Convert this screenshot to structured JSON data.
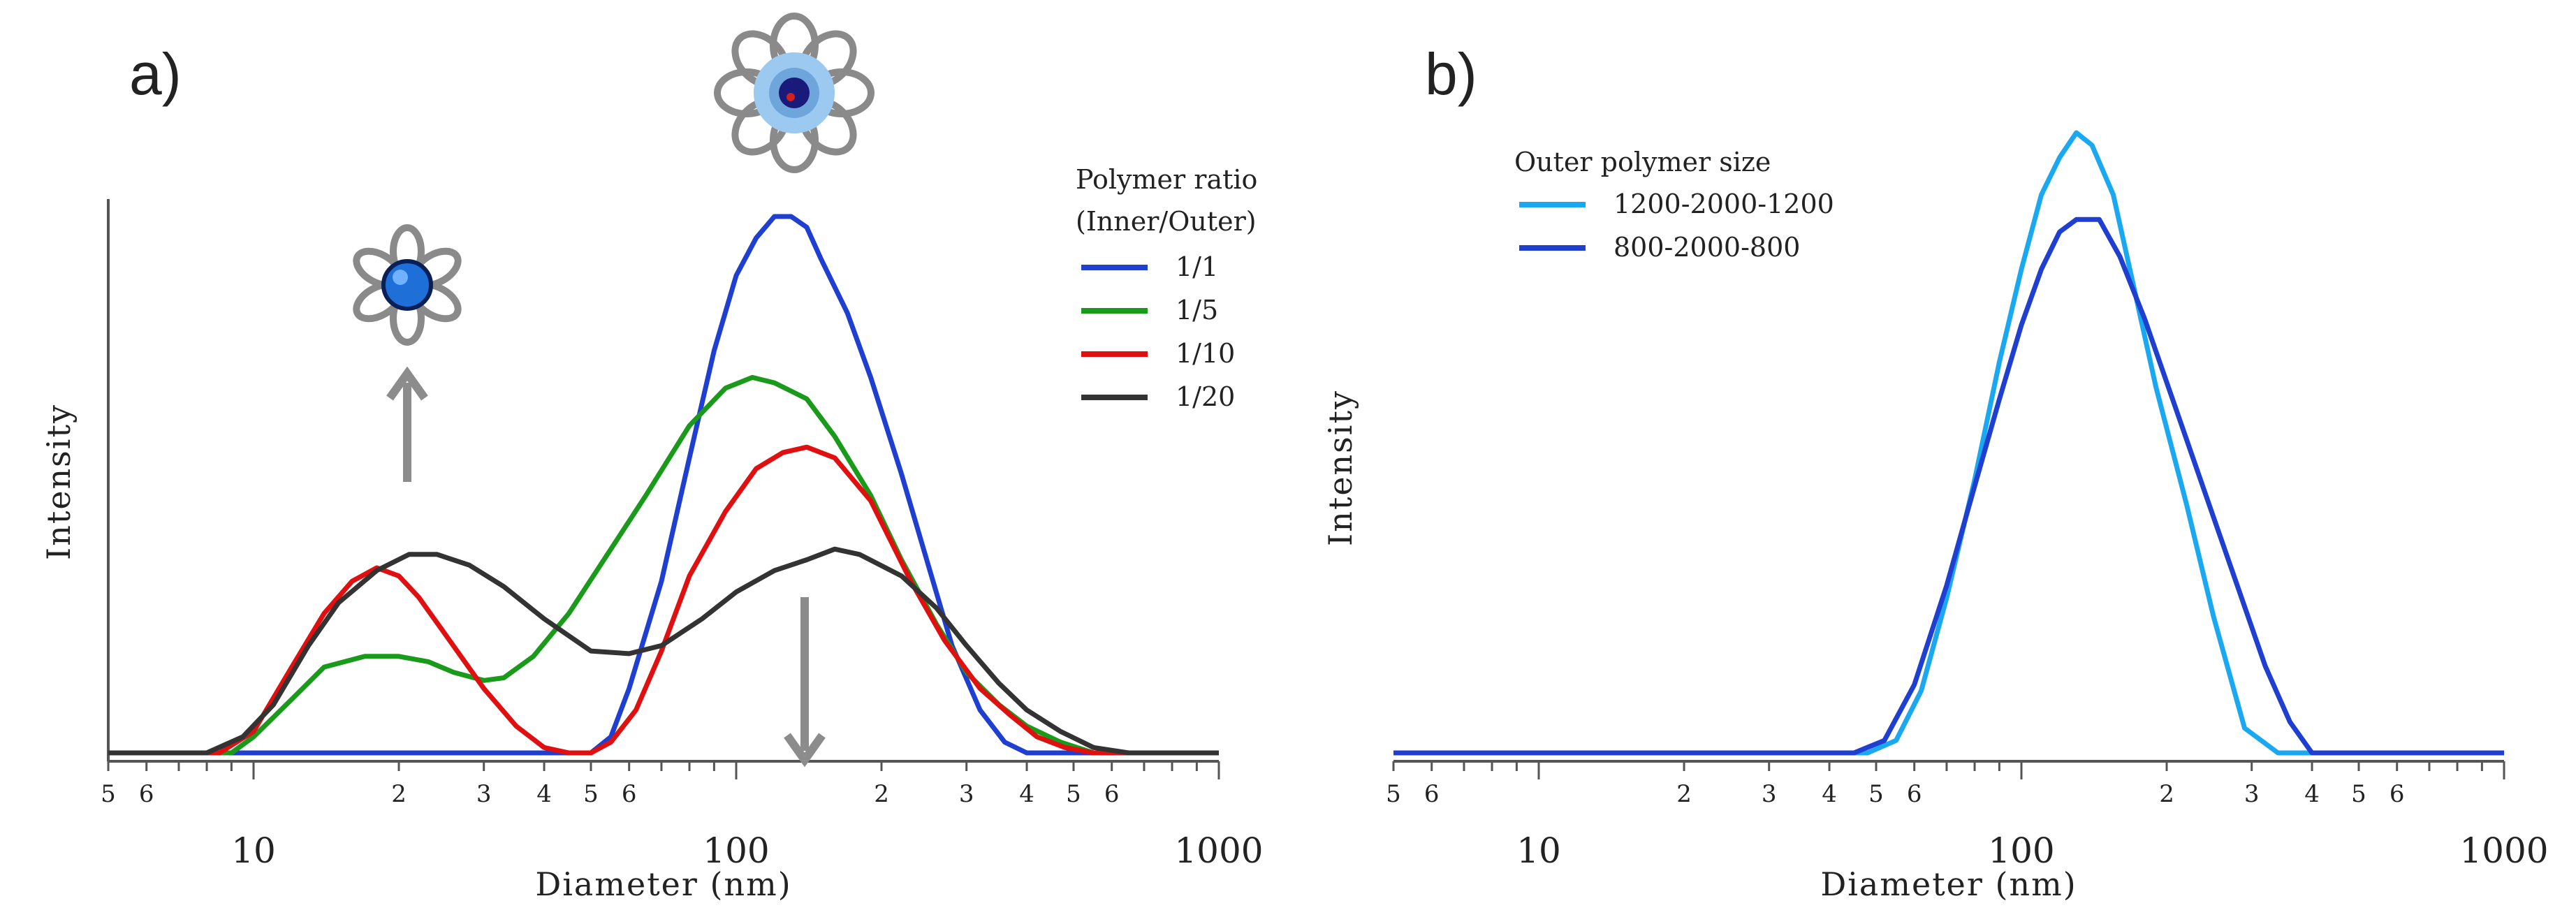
{
  "chart_data": [
    {
      "panel_label": "a)",
      "type": "line",
      "xscale": "log",
      "xlim": [
        5,
        1000
      ],
      "xlabel": "Diameter (nm)",
      "ylabel": "Intensity",
      "x_major_ticks": [
        "10",
        "100",
        "1000"
      ],
      "x_minor_ticks": [
        "5",
        "6",
        "2",
        "3",
        "4",
        "5",
        "6",
        "2",
        "3",
        "4",
        "5",
        "6"
      ],
      "legend": {
        "title_line1": "Polymer ratio",
        "title_line2": "(Inner/Outer)",
        "position": "top-right"
      },
      "ylim": [
        0,
        100
      ],
      "series": [
        {
          "name": "1/1",
          "color": "#1f3fd0",
          "points": [
            [
              5,
              0
            ],
            [
              50,
              0
            ],
            [
              55,
              3
            ],
            [
              60,
              12
            ],
            [
              70,
              32
            ],
            [
              80,
              55
            ],
            [
              90,
              75
            ],
            [
              100,
              89
            ],
            [
              110,
              96
            ],
            [
              120,
              100
            ],
            [
              130,
              100
            ],
            [
              140,
              98
            ],
            [
              150,
              92
            ],
            [
              170,
              82
            ],
            [
              190,
              70
            ],
            [
              220,
              52
            ],
            [
              250,
              35
            ],
            [
              280,
              20
            ],
            [
              320,
              8
            ],
            [
              360,
              2
            ],
            [
              400,
              0
            ],
            [
              1000,
              0
            ]
          ]
        },
        {
          "name": "1/5",
          "color": "#1a9a1a",
          "points": [
            [
              5,
              0
            ],
            [
              9,
              0
            ],
            [
              10,
              3
            ],
            [
              12,
              10
            ],
            [
              14,
              16
            ],
            [
              17,
              18
            ],
            [
              20,
              18
            ],
            [
              23,
              17
            ],
            [
              26,
              15
            ],
            [
              30,
              13.5
            ],
            [
              33,
              14
            ],
            [
              38,
              18
            ],
            [
              45,
              26
            ],
            [
              55,
              38
            ],
            [
              65,
              48
            ],
            [
              80,
              61
            ],
            [
              95,
              68
            ],
            [
              108,
              70
            ],
            [
              120,
              69
            ],
            [
              140,
              66
            ],
            [
              160,
              59
            ],
            [
              190,
              48
            ],
            [
              220,
              36
            ],
            [
              260,
              24
            ],
            [
              300,
              15
            ],
            [
              350,
              9
            ],
            [
              400,
              5
            ],
            [
              470,
              2
            ],
            [
              550,
              0
            ],
            [
              1000,
              0
            ]
          ]
        },
        {
          "name": "1/10",
          "color": "#e01010",
          "points": [
            [
              5,
              0
            ],
            [
              8.5,
              0
            ],
            [
              10,
              4
            ],
            [
              12,
              16
            ],
            [
              14,
              26
            ],
            [
              16,
              32
            ],
            [
              18,
              34.5
            ],
            [
              20,
              33
            ],
            [
              22,
              29
            ],
            [
              25,
              22
            ],
            [
              30,
              12
            ],
            [
              35,
              5
            ],
            [
              40,
              1
            ],
            [
              45,
              0
            ],
            [
              50,
              0
            ],
            [
              55,
              2
            ],
            [
              62,
              8
            ],
            [
              70,
              19
            ],
            [
              80,
              33
            ],
            [
              95,
              45
            ],
            [
              110,
              53
            ],
            [
              125,
              56
            ],
            [
              140,
              57
            ],
            [
              160,
              55
            ],
            [
              190,
              47
            ],
            [
              230,
              32
            ],
            [
              270,
              21
            ],
            [
              320,
              12
            ],
            [
              370,
              7
            ],
            [
              420,
              3
            ],
            [
              480,
              1
            ],
            [
              550,
              0
            ],
            [
              1000,
              0
            ]
          ]
        },
        {
          "name": "1/20",
          "color": "#333333",
          "points": [
            [
              5,
              0
            ],
            [
              8,
              0
            ],
            [
              9.5,
              3
            ],
            [
              11,
              9
            ],
            [
              13,
              20
            ],
            [
              15,
              28
            ],
            [
              18,
              34
            ],
            [
              21,
              37
            ],
            [
              24,
              37
            ],
            [
              28,
              35
            ],
            [
              33,
              31
            ],
            [
              40,
              25
            ],
            [
              50,
              19
            ],
            [
              60,
              18.5
            ],
            [
              70,
              20
            ],
            [
              85,
              25
            ],
            [
              100,
              30
            ],
            [
              120,
              34
            ],
            [
              140,
              36
            ],
            [
              160,
              38
            ],
            [
              180,
              37
            ],
            [
              220,
              33
            ],
            [
              260,
              27
            ],
            [
              300,
              20
            ],
            [
              350,
              13
            ],
            [
              400,
              8
            ],
            [
              470,
              4
            ],
            [
              550,
              1
            ],
            [
              650,
              0
            ],
            [
              1000,
              0
            ]
          ]
        }
      ],
      "annotations": [
        {
          "type": "arrow-up",
          "x": 20,
          "label": "small micelle (inner core) shift"
        },
        {
          "type": "arrow-down",
          "x": 140,
          "label": "large aggregate shift"
        }
      ]
    },
    {
      "panel_label": "b)",
      "type": "line",
      "xscale": "log",
      "xlim": [
        5,
        1000
      ],
      "xlabel": "Diameter (nm)",
      "ylabel": "Intensity",
      "x_major_ticks": [
        "10",
        "100",
        "1000"
      ],
      "x_minor_ticks": [
        "5",
        "6",
        "2",
        "3",
        "4",
        "5",
        "6",
        "2",
        "3",
        "4",
        "5",
        "6"
      ],
      "legend": {
        "title": "Outer polymer size",
        "position": "top-left"
      },
      "ylim": [
        0,
        100
      ],
      "series": [
        {
          "name": "1200-2000-1200",
          "color": "#1aa8f0",
          "points": [
            [
              5,
              0
            ],
            [
              48,
              0
            ],
            [
              55,
              2
            ],
            [
              62,
              10
            ],
            [
              70,
              25
            ],
            [
              80,
              44
            ],
            [
              90,
              63
            ],
            [
              100,
              78
            ],
            [
              110,
              90
            ],
            [
              120,
              96
            ],
            [
              130,
              100
            ],
            [
              140,
              98
            ],
            [
              155,
              90
            ],
            [
              170,
              76
            ],
            [
              190,
              59
            ],
            [
              220,
              40
            ],
            [
              250,
              22
            ],
            [
              290,
              4
            ],
            [
              340,
              0
            ],
            [
              1000,
              0
            ]
          ]
        },
        {
          "name": "800-2000-800",
          "color": "#1f3fd0",
          "points": [
            [
              5,
              0
            ],
            [
              45,
              0
            ],
            [
              52,
              2
            ],
            [
              60,
              11
            ],
            [
              70,
              27
            ],
            [
              80,
              43
            ],
            [
              90,
              57
            ],
            [
              100,
              69
            ],
            [
              110,
              78
            ],
            [
              120,
              84
            ],
            [
              130,
              86
            ],
            [
              145,
              86
            ],
            [
              160,
              80
            ],
            [
              180,
              70
            ],
            [
              210,
              55
            ],
            [
              240,
              42
            ],
            [
              280,
              27
            ],
            [
              320,
              14
            ],
            [
              360,
              5
            ],
            [
              400,
              0
            ],
            [
              1000,
              0
            ]
          ]
        }
      ]
    }
  ]
}
